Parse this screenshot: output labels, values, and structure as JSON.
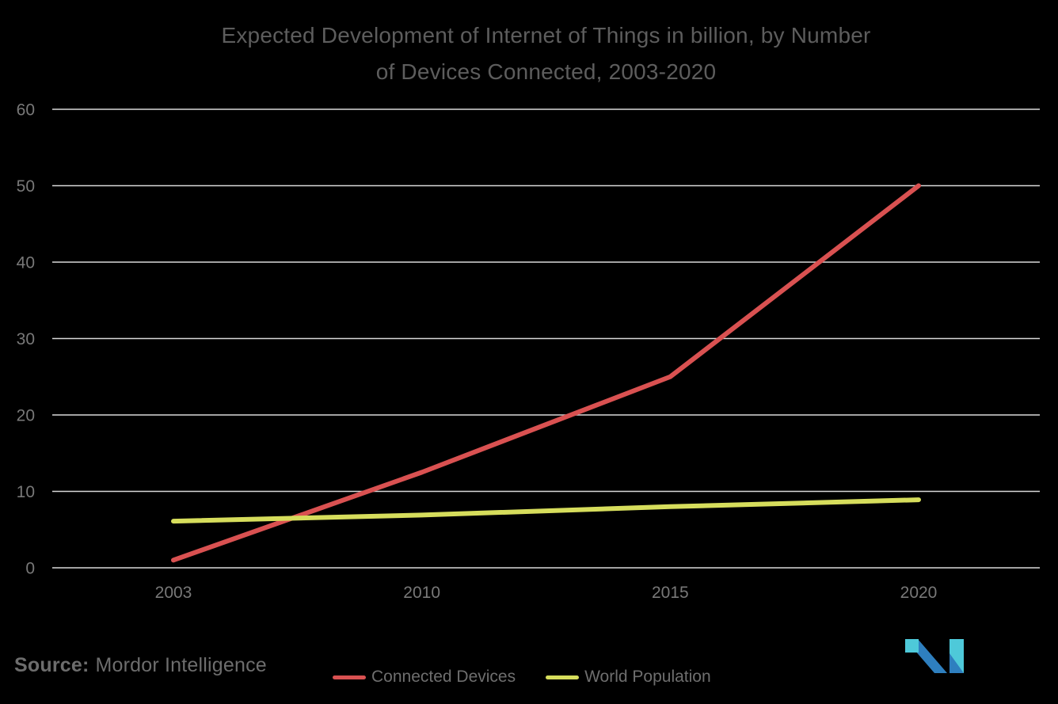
{
  "header": {
    "title_lines": [
      "Expected Development of Internet of Things in billion, by Number",
      "of Devices Connected, 2003-2020"
    ]
  },
  "chart_data": {
    "type": "line",
    "title": "Expected Development of Internet of Things in billion, by Number of Devices Connected, 2003-2020",
    "categories": [
      "2003",
      "2010",
      "2015",
      "2020"
    ],
    "series": [
      {
        "name": "Connected Devices",
        "values": [
          1,
          12.5,
          25,
          50
        ],
        "color": "#d95151"
      },
      {
        "name": "World Population",
        "values": [
          6.1,
          6.9,
          8.0,
          8.9
        ],
        "color": "#d6dd5c"
      }
    ],
    "xlabel": "",
    "ylabel": "",
    "ylim": [
      0,
      60
    ],
    "yticks": [
      0,
      10,
      20,
      30,
      40,
      50,
      60
    ],
    "grid": "horizontal",
    "legend_position": "bottom"
  },
  "footer": {
    "source_label": "Source:",
    "source_value": "Mordor Intelligence",
    "logo_name": "mordor-intelligence-logo"
  },
  "colors": {
    "background": "#000000",
    "title_text": "#5d5d5d",
    "axis_text": "#787878",
    "gridline": "#d9d9d9",
    "legend_text": "#6e6e6e",
    "source_text": "#6d6d6d",
    "logo_teal": "#4ec9d9",
    "logo_blue": "#2e7fbf"
  }
}
